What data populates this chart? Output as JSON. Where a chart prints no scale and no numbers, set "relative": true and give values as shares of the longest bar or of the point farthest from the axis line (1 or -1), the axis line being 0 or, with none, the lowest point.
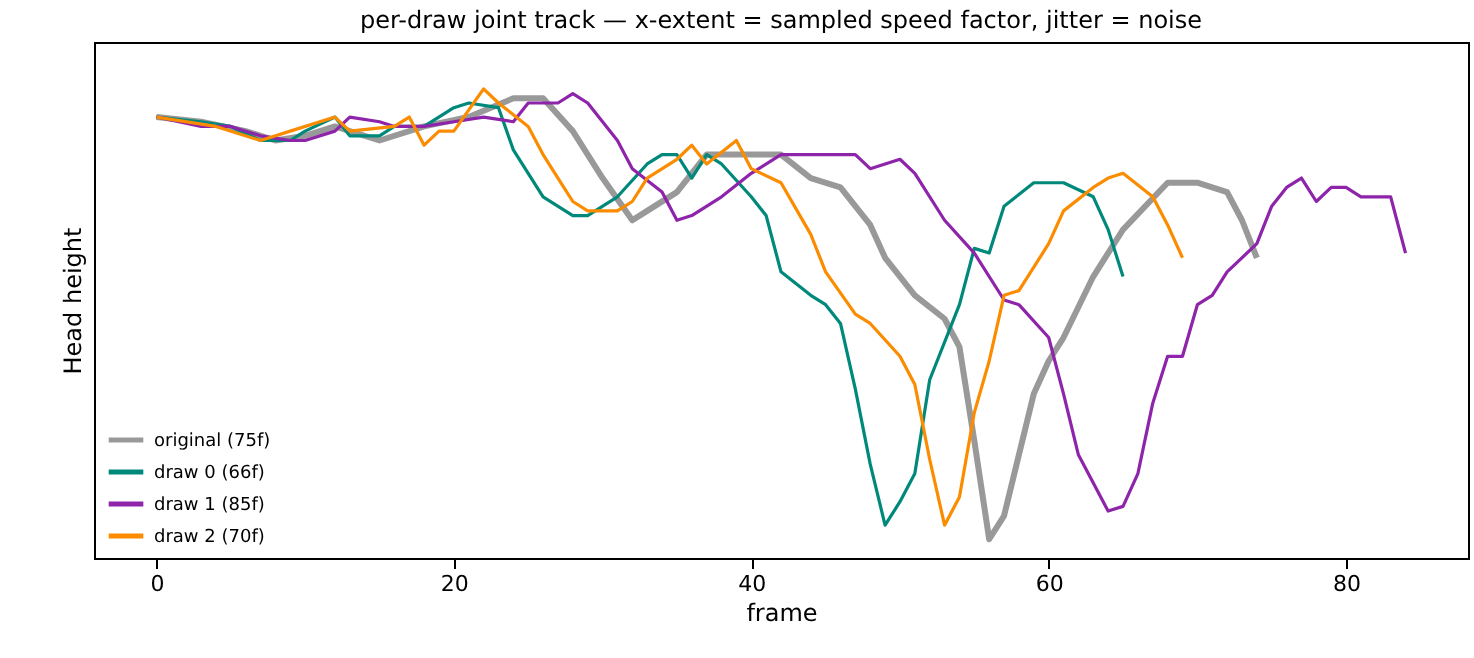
{
  "chart_data": {
    "type": "line",
    "title": "per-draw joint track — x-extent = sampled speed factor, jitter = noise",
    "xlabel": "frame",
    "ylabel": "Head height",
    "relative": true,
    "xlim": [
      -4.2,
      88.2
    ],
    "xticks": [
      0,
      20,
      40,
      60,
      80
    ],
    "legend": "bottom left",
    "grid": false,
    "marker": "none",
    "line_style": "solid",
    "series": [
      {
        "name": "original (75f)",
        "color": "#999999",
        "x": [
          0,
          3,
          6,
          8,
          10,
          12,
          15,
          18,
          21,
          24,
          26,
          28,
          30,
          32,
          33,
          35,
          37,
          40,
          42,
          44,
          46,
          48,
          49,
          51,
          53,
          54,
          55,
          56,
          57,
          58,
          59,
          60,
          61,
          63,
          65,
          68,
          70,
          72,
          73,
          74
        ],
        "values": [
          0.94,
          0.93,
          0.91,
          0.89,
          0.9,
          0.92,
          0.89,
          0.92,
          0.94,
          0.98,
          0.98,
          0.91,
          0.81,
          0.72,
          0.74,
          0.78,
          0.86,
          0.86,
          0.86,
          0.81,
          0.79,
          0.71,
          0.64,
          0.56,
          0.51,
          0.45,
          0.25,
          0.04,
          0.09,
          0.22,
          0.35,
          0.42,
          0.47,
          0.6,
          0.7,
          0.8,
          0.8,
          0.78,
          0.72,
          0.64
        ]
      },
      {
        "name": "draw 0 (66f)",
        "color": "#00897b",
        "x": [
          0,
          3,
          5,
          7,
          9,
          10,
          12,
          13,
          15,
          16,
          18,
          20,
          21,
          23,
          24,
          26,
          28,
          29,
          31,
          33,
          34,
          35,
          36,
          37,
          38,
          40,
          41,
          42,
          44,
          45,
          46,
          47,
          48,
          49,
          50,
          51,
          52,
          54,
          55,
          56,
          57,
          59,
          61,
          63,
          64,
          65
        ],
        "values": [
          0.94,
          0.93,
          0.92,
          0.89,
          0.89,
          0.91,
          0.94,
          0.9,
          0.9,
          0.92,
          0.92,
          0.96,
          0.97,
          0.96,
          0.87,
          0.77,
          0.73,
          0.73,
          0.77,
          0.84,
          0.86,
          0.86,
          0.81,
          0.86,
          0.84,
          0.77,
          0.73,
          0.61,
          0.56,
          0.54,
          0.5,
          0.36,
          0.2,
          0.07,
          0.12,
          0.18,
          0.38,
          0.54,
          0.66,
          0.65,
          0.75,
          0.8,
          0.8,
          0.77,
          0.7,
          0.6
        ]
      },
      {
        "name": "draw 1 (85f)",
        "color": "#8e24aa",
        "x": [
          0,
          3,
          5,
          7,
          9,
          10,
          12,
          13,
          15,
          16,
          18,
          20,
          22,
          24,
          25,
          27,
          28,
          29,
          30,
          31,
          32,
          34,
          35,
          36,
          38,
          40,
          42,
          45,
          47,
          48,
          50,
          51,
          53,
          55,
          57,
          58,
          60,
          61,
          62,
          64,
          65,
          66,
          67,
          68,
          69,
          70,
          71,
          72,
          74,
          75,
          76,
          77,
          78,
          79,
          80,
          81,
          82,
          83,
          84
        ],
        "values": [
          0.94,
          0.92,
          0.92,
          0.9,
          0.89,
          0.89,
          0.91,
          0.94,
          0.93,
          0.92,
          0.92,
          0.93,
          0.94,
          0.93,
          0.97,
          0.97,
          0.99,
          0.97,
          0.93,
          0.89,
          0.83,
          0.78,
          0.72,
          0.73,
          0.77,
          0.82,
          0.86,
          0.86,
          0.86,
          0.83,
          0.85,
          0.82,
          0.72,
          0.65,
          0.55,
          0.54,
          0.47,
          0.35,
          0.22,
          0.1,
          0.11,
          0.18,
          0.33,
          0.43,
          0.43,
          0.54,
          0.56,
          0.61,
          0.67,
          0.75,
          0.79,
          0.81,
          0.76,
          0.79,
          0.79,
          0.77,
          0.77,
          0.77,
          0.65
        ]
      },
      {
        "name": "draw 2 (70f)",
        "color": "#fb8c00",
        "x": [
          0,
          4,
          7,
          9,
          12,
          13,
          16,
          17,
          18,
          19,
          20,
          22,
          23,
          25,
          26,
          27,
          28,
          29,
          31,
          32,
          33,
          35,
          36,
          37,
          39,
          40,
          42,
          44,
          45,
          47,
          48,
          50,
          51,
          52,
          53,
          54,
          55,
          56,
          57,
          58,
          60,
          61,
          63,
          64,
          65,
          67,
          68,
          69
        ],
        "values": [
          0.94,
          0.92,
          0.89,
          0.91,
          0.94,
          0.91,
          0.92,
          0.94,
          0.88,
          0.91,
          0.91,
          1.0,
          0.97,
          0.92,
          0.86,
          0.81,
          0.76,
          0.74,
          0.74,
          0.76,
          0.81,
          0.85,
          0.88,
          0.84,
          0.89,
          0.83,
          0.8,
          0.69,
          0.61,
          0.52,
          0.5,
          0.43,
          0.37,
          0.21,
          0.07,
          0.13,
          0.31,
          0.42,
          0.56,
          0.57,
          0.67,
          0.74,
          0.79,
          0.81,
          0.82,
          0.77,
          0.71,
          0.64
        ]
      }
    ]
  }
}
